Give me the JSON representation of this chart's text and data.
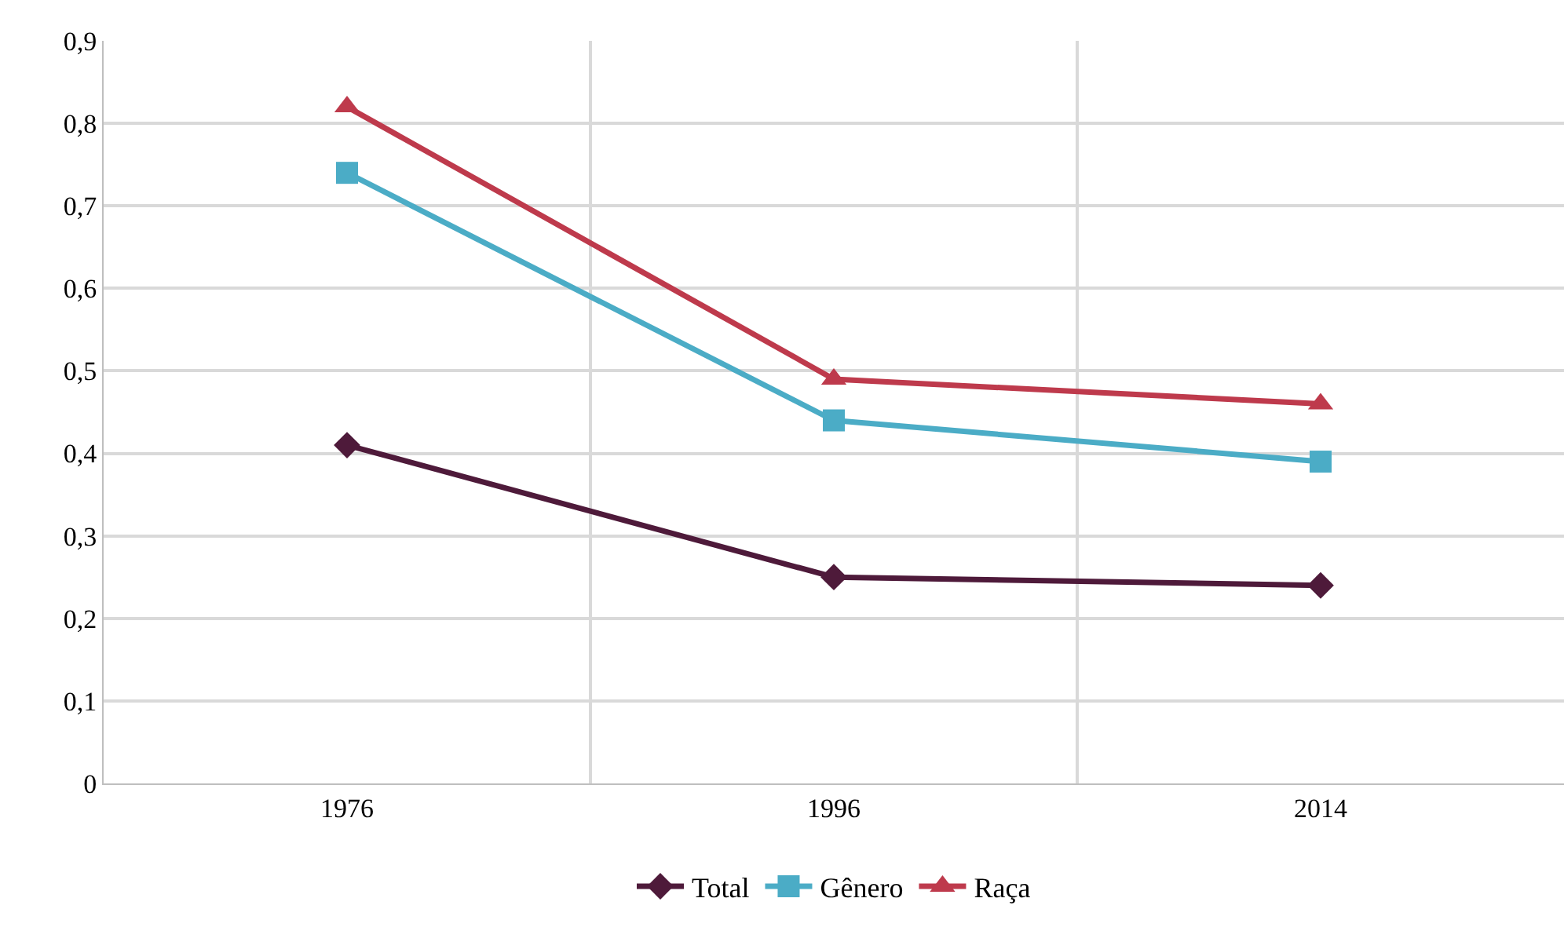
{
  "chart_data": {
    "type": "line",
    "categories": [
      "1976",
      "1996",
      "2014"
    ],
    "series": [
      {
        "name": "Total",
        "color": "#4e1a3a",
        "marker": "diamond",
        "values": [
          0.41,
          0.25,
          0.24
        ]
      },
      {
        "name": "Gênero",
        "color": "#4bacc6",
        "marker": "square",
        "values": [
          0.74,
          0.44,
          0.39
        ]
      },
      {
        "name": "Raça",
        "color": "#be3a4c",
        "marker": "triangle",
        "values": [
          0.82,
          0.49,
          0.46
        ]
      }
    ],
    "ylim": [
      0,
      0.9
    ],
    "yticks": [
      0,
      {
        "value": 0.1,
        "label": "0,1"
      },
      {
        "value": 0.2,
        "label": "0,2"
      },
      {
        "value": 0.3,
        "label": "0,3"
      },
      {
        "value": 0.4,
        "label": "0,4"
      },
      {
        "value": 0.5,
        "label": "0,5"
      },
      {
        "value": 0.6,
        "label": "0,6"
      },
      {
        "value": 0.7,
        "label": "0,7"
      },
      {
        "value": 0.8,
        "label": "0,8"
      },
      {
        "value": 0.9,
        "label": "0,9"
      }
    ],
    "grid": true,
    "legend": "bottom",
    "line_style": "solid"
  }
}
